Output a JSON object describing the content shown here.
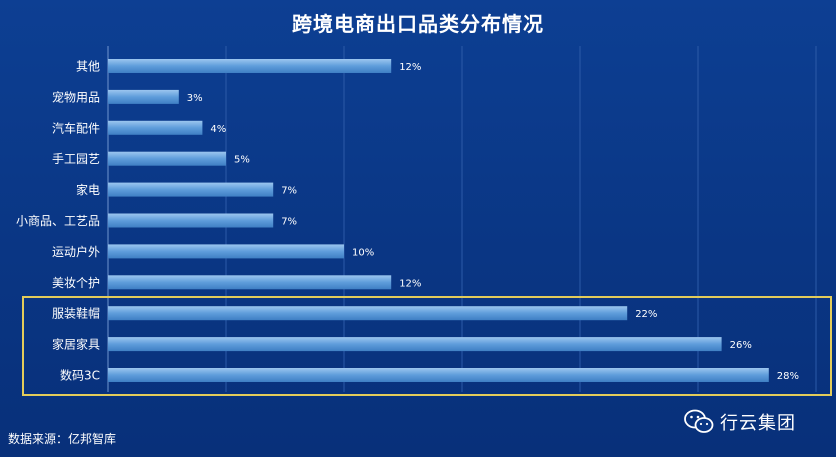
{
  "chart_data": {
    "type": "bar",
    "orientation": "horizontal",
    "title": "跨境电商出口品类分布情况",
    "categories": [
      "其他",
      "宠物用品",
      "汽车配件",
      "手工园艺",
      "家电",
      "小商品、工艺品",
      "运动户外",
      "美妆个护",
      "服装鞋帽",
      "家居家具",
      "数码3C"
    ],
    "values": [
      12,
      3,
      4,
      5,
      7,
      7,
      10,
      12,
      22,
      26,
      28
    ],
    "data_labels": [
      "12%",
      "3%",
      "4%",
      "5%",
      "7%",
      "7%",
      "10%",
      "12%",
      "22%",
      "26%",
      "28%"
    ],
    "unit": "%",
    "xlim": [
      0,
      30
    ],
    "grid": true,
    "highlighted_categories": [
      "服装鞋帽",
      "家居家具",
      "数码3C"
    ],
    "colors": {
      "bar": "#5b9bd5",
      "bar_light": "#8dbcea",
      "highlight_border": "#e3cc5a",
      "background": "#0a3684"
    }
  },
  "footer": {
    "source": "数据来源：亿邦智库",
    "brand": "行云集团"
  },
  "icons": {
    "brand_icon": "wechat-icon"
  }
}
